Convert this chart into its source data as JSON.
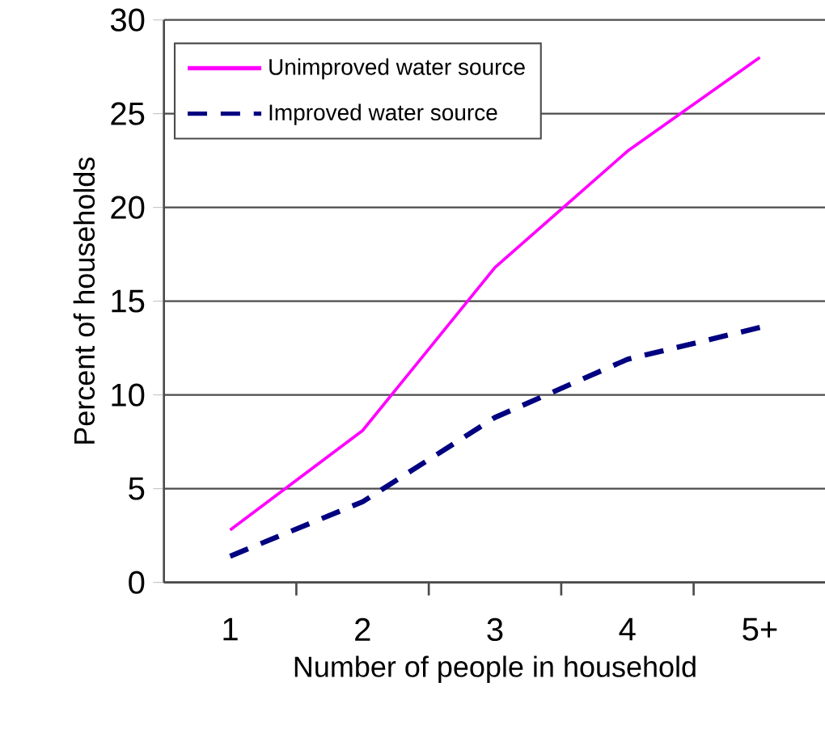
{
  "chart_data": {
    "type": "line",
    "xlabel": "Number of people in household",
    "ylabel": "Percent of households",
    "categories": [
      "1",
      "2",
      "3",
      "4",
      "5+"
    ],
    "series": [
      {
        "name": "Unimproved water source",
        "color": "#ff00ff",
        "line_style": "solid",
        "values": [
          2.8,
          8.1,
          16.8,
          23,
          28
        ]
      },
      {
        "name": "Improved water source",
        "color": "#000080",
        "line_style": "dashed",
        "values": [
          1.4,
          4.3,
          8.8,
          11.9,
          13.6
        ]
      }
    ],
    "ylim": [
      0,
      30
    ],
    "yticks": [
      0,
      5,
      10,
      15,
      20,
      25,
      30
    ],
    "grid": "y",
    "legend": "top left",
    "marker": "none"
  }
}
